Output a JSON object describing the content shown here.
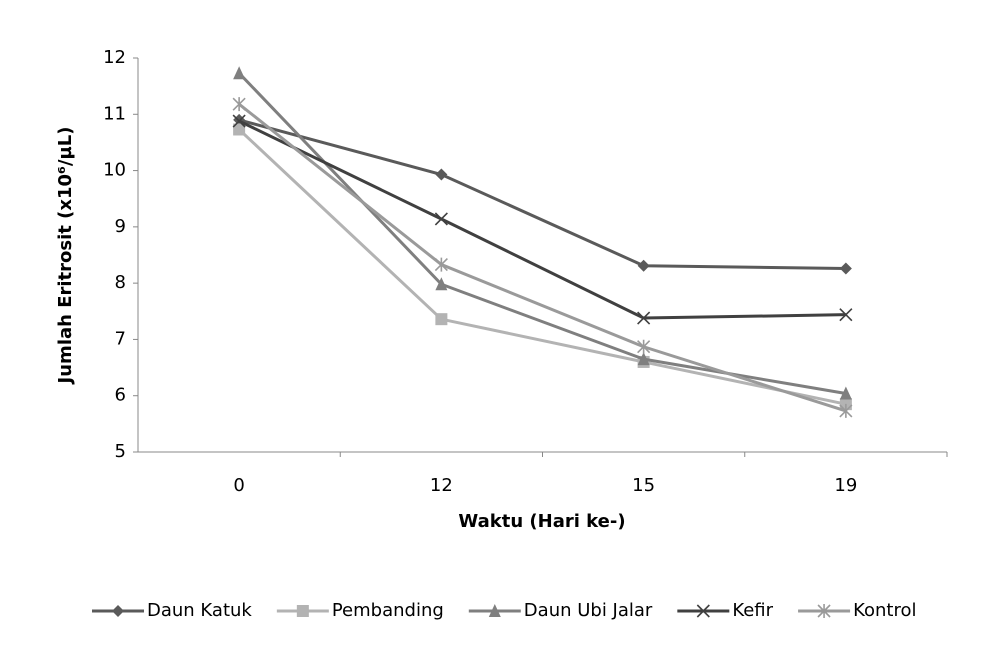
{
  "chart_data": {
    "type": "line",
    "x_label": "Waktu (Hari ke-)",
    "y_label": "Jumlah Eritrosit (x10⁶/µL)",
    "categories": [
      "0",
      "12",
      "15",
      "19"
    ],
    "ylim": [
      5,
      12
    ],
    "yticks": [
      5,
      6,
      7,
      8,
      9,
      10,
      11,
      12
    ],
    "grid": false,
    "legend": "bottom",
    "series": [
      {
        "name": "Daun Katuk",
        "color": "#5a5a5a",
        "marker": "diamond",
        "values": [
          10.9,
          9.93,
          8.31,
          8.26
        ]
      },
      {
        "name": "Pembanding",
        "color": "#b3b3b3",
        "marker": "square",
        "values": [
          10.73,
          7.36,
          6.6,
          5.85
        ]
      },
      {
        "name": "Daun Ubi Jalar",
        "color": "#7f7f7f",
        "marker": "triangle",
        "values": [
          11.73,
          7.98,
          6.65,
          6.04
        ]
      },
      {
        "name": "Kefir",
        "color": "#404040",
        "marker": "x",
        "values": [
          10.88,
          9.14,
          7.38,
          7.44
        ]
      },
      {
        "name": "Kontrol",
        "color": "#9a9a9a",
        "marker": "star",
        "values": [
          11.18,
          8.33,
          6.87,
          5.73
        ]
      }
    ]
  }
}
